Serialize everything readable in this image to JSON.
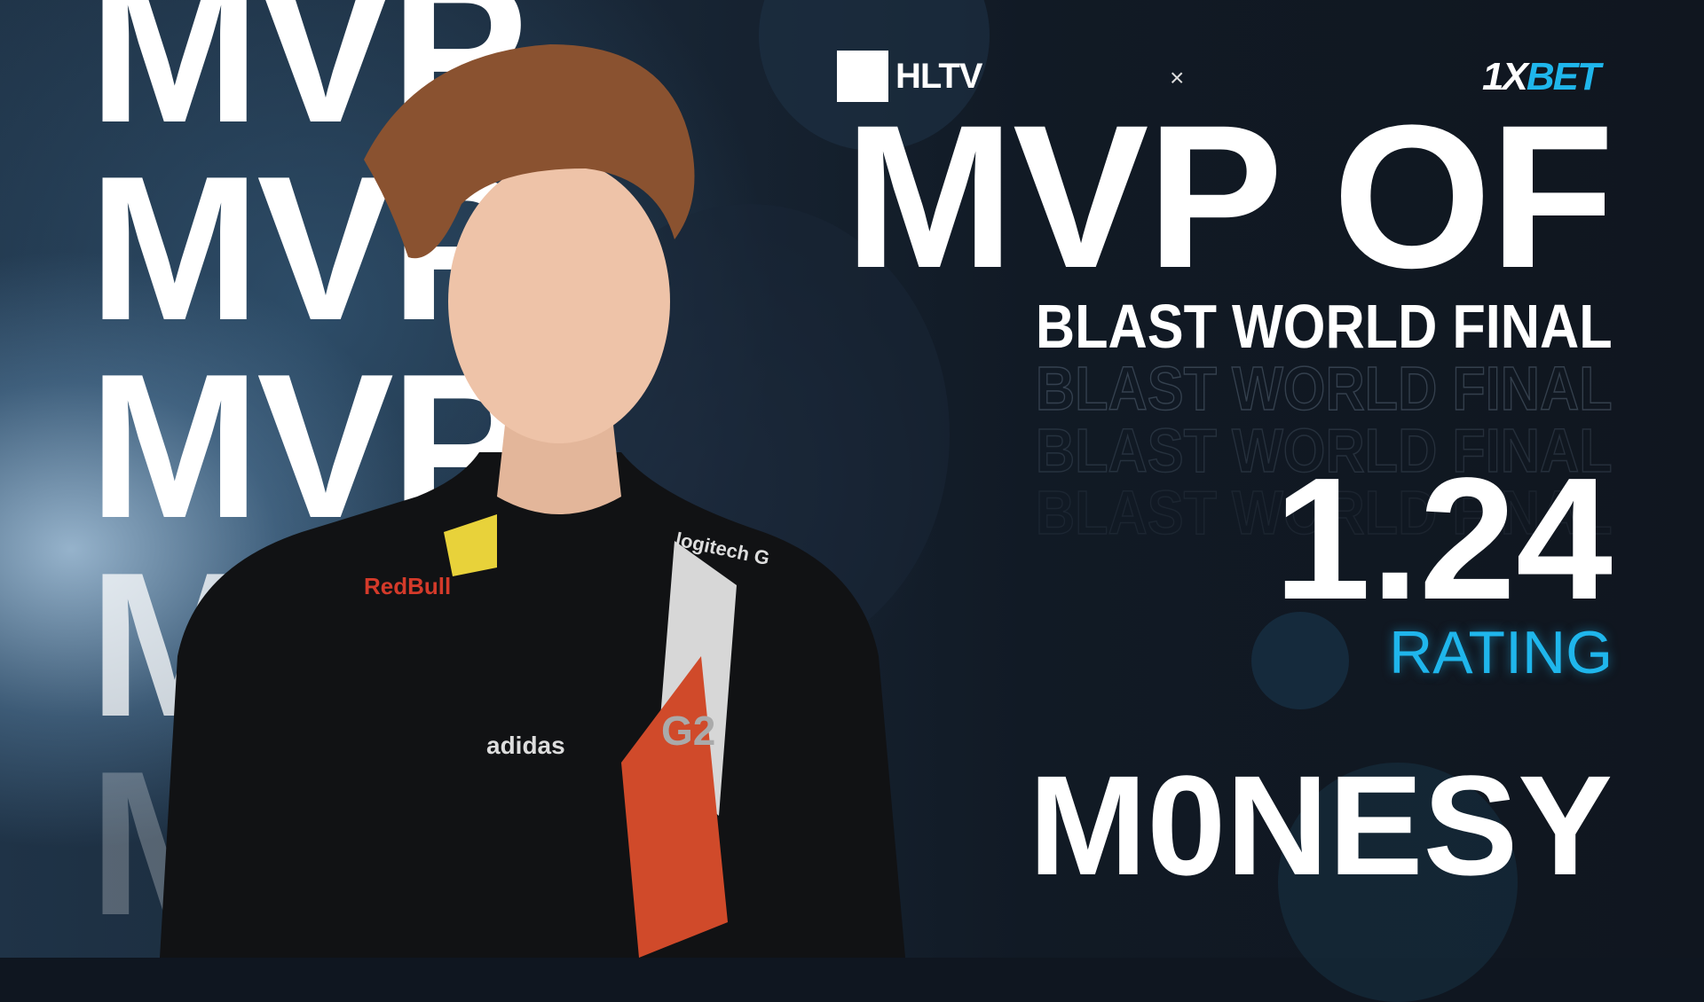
{
  "background_word": "MVP",
  "header": {
    "partner_left": "HLTV",
    "separator": "×",
    "partner_right_1": "1X",
    "partner_right_2": "BET"
  },
  "title": "MVP OF",
  "event": "BLAST WORLD FINAL",
  "rating": {
    "value": "1.24",
    "label": "RATING"
  },
  "player": "M0NESY",
  "photo_logos": {
    "energy": "RedBull",
    "peripherals": "logitech G",
    "apparel": "adidas",
    "team": "G2"
  },
  "colors": {
    "accent": "#1fb6ec",
    "background": "#101821",
    "text": "#ffffff"
  }
}
